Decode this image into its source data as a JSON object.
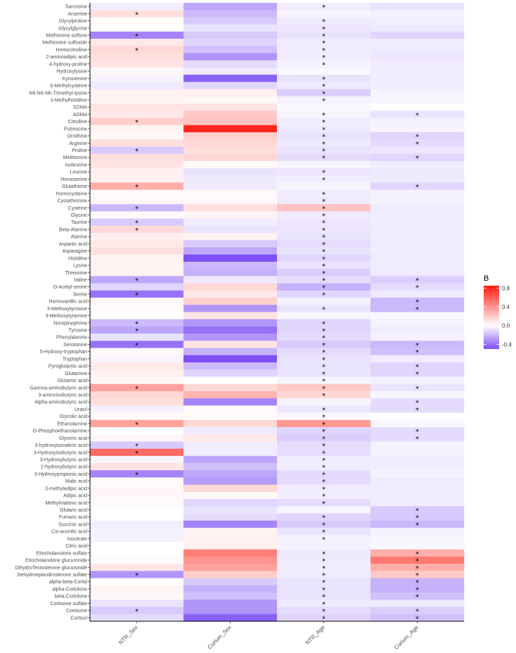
{
  "chart_data": {
    "type": "heatmap",
    "columns": [
      "NTR_Sex",
      "Curium_Sex",
      "NTR_Age",
      "Curium_Age"
    ],
    "rows": [
      "Sarcosine",
      "Anserine",
      "Glycylproline",
      "Glycylglycine",
      "Methionine sulfone",
      "Methionine sulfoxide",
      "Homocitrulline",
      "2-aminoadipic acid",
      "4-hydroxy-proline",
      "Hydroxylysine",
      "Kynurenine",
      "S-Methylcysteine",
      "N6-N6-N6-Trimethyl-lysine",
      "3-Methylhistidine",
      "SDMA",
      "ADMA",
      "Citrulline",
      "Putrescine",
      "Ornithine",
      "Arginine",
      "Proline",
      "Methionine",
      "Isoleucine",
      "Leucine",
      "Homoserine",
      "Glutathione",
      "Homocysteine",
      "Cystathionine",
      "Cysteine",
      "Glycine",
      "Taurine",
      "Beta-Alanine",
      "Alanine",
      "Aspartic acid",
      "Asparagine",
      "Histidine",
      "Lysine",
      "Threonine",
      "Valine",
      "O-Acetyl-serine",
      "Serine",
      "Homovanillic acid",
      "3-Methoxytyrosine",
      "3-Methoxytyramine",
      "Norepinephrine",
      "Tyrosine",
      "Phenylalanine",
      "Serotonine",
      "5-Hydroxy-tryptophan",
      "Tryptophan",
      "Pyroglutamic acid",
      "Glutamine",
      "Glutamic acid",
      "Gamma-aminobutyric acid",
      "3-aminoisobutyric acid",
      "Alpha-aminobutyric acid",
      "Uracil",
      "Glycolic acid",
      "Ethanolamine",
      "O-Phosphoethanolamine",
      "Glyceric acid",
      "3-hydroxyisovaleric acid",
      "3-Hydroxyisobutyric acid",
      "3-Hydroxybutyric acid",
      "2-hydroxybutyric acid",
      "3-Hydroxypropionic acid",
      "Malic acid",
      "3-methyladipic acid",
      "Adipic acid",
      "Methylmalonic acid",
      "Glutaric acid",
      "Fumaric acid",
      "Succinic acid",
      "Cis-aconitic acid",
      "Isocitrate",
      "Citric acid",
      "Etiocholanolone sulfate",
      "Etiocholanolone glucuronide",
      "DihydroTestosterone glucuronide",
      "Dehydroepiandrosterone sulfate",
      "alpha-beta-Cortol",
      "alpha-Cortolone",
      "beta-Cortolone",
      "Cortisone sulfate",
      "Cortisone",
      "Cortisol"
    ],
    "values": [
      [
        -0.05,
        -0.25,
        -0.05,
        -0.08
      ],
      [
        0.12,
        -0.2,
        -0.03,
        -0.04
      ],
      [
        0.02,
        -0.15,
        -0.06,
        -0.05
      ],
      [
        0.0,
        -0.08,
        -0.07,
        -0.06
      ],
      [
        -0.35,
        -0.15,
        -0.08,
        -0.12
      ],
      [
        0.08,
        -0.12,
        -0.06,
        -0.05
      ],
      [
        0.15,
        -0.18,
        -0.05,
        -0.06
      ],
      [
        0.12,
        -0.3,
        -0.05,
        -0.07
      ],
      [
        0.1,
        -0.1,
        -0.04,
        -0.05
      ],
      [
        0.03,
        -0.06,
        -0.02,
        -0.05
      ],
      [
        -0.03,
        -0.45,
        -0.08,
        -0.05
      ],
      [
        -0.06,
        -0.12,
        -0.06,
        -0.05
      ],
      [
        0.05,
        0.06,
        -0.14,
        -0.03
      ],
      [
        0.04,
        0.02,
        -0.04,
        -0.03
      ],
      [
        0.1,
        0.1,
        -0.02,
        0.0
      ],
      [
        0.08,
        0.2,
        -0.03,
        -0.08
      ],
      [
        0.18,
        0.22,
        -0.05,
        -0.04
      ],
      [
        0.04,
        0.8,
        -0.06,
        -0.03
      ],
      [
        0.02,
        0.18,
        -0.08,
        -0.12
      ],
      [
        0.12,
        0.15,
        -0.06,
        -0.1
      ],
      [
        -0.15,
        0.12,
        -0.08,
        -0.07
      ],
      [
        0.12,
        0.15,
        -0.1,
        -0.12
      ],
      [
        0.1,
        0.02,
        -0.03,
        -0.05
      ],
      [
        0.06,
        -0.08,
        -0.07,
        -0.06
      ],
      [
        0.05,
        -0.06,
        -0.05,
        -0.06
      ],
      [
        0.3,
        -0.06,
        -0.03,
        -0.12
      ],
      [
        0.02,
        0.02,
        -0.05,
        -0.04
      ],
      [
        0.03,
        0.03,
        -0.06,
        -0.04
      ],
      [
        -0.2,
        0.12,
        0.22,
        -0.06
      ],
      [
        0.02,
        0.04,
        -0.06,
        -0.05
      ],
      [
        -0.15,
        -0.05,
        -0.07,
        -0.05
      ],
      [
        0.14,
        -0.08,
        -0.07,
        -0.06
      ],
      [
        0.06,
        0.05,
        -0.08,
        -0.05
      ],
      [
        0.08,
        -0.15,
        -0.1,
        -0.06
      ],
      [
        0.12,
        -0.25,
        -0.08,
        -0.05
      ],
      [
        0.05,
        -0.5,
        -0.12,
        -0.06
      ],
      [
        0.04,
        -0.2,
        -0.08,
        -0.05
      ],
      [
        0.05,
        -0.22,
        -0.14,
        -0.06
      ],
      [
        -0.25,
        -0.06,
        -0.1,
        -0.14
      ],
      [
        -0.12,
        0.15,
        -0.22,
        -0.1
      ],
      [
        -0.4,
        0.08,
        -0.12,
        -0.06
      ],
      [
        0.03,
        0.18,
        -0.04,
        -0.2
      ],
      [
        0.02,
        -0.3,
        -0.08,
        -0.2
      ],
      [
        0.0,
        0.1,
        -0.03,
        -0.02
      ],
      [
        -0.2,
        -0.3,
        -0.12,
        -0.04
      ],
      [
        -0.25,
        -0.4,
        -0.12,
        -0.05
      ],
      [
        -0.08,
        -0.3,
        -0.1,
        -0.04
      ],
      [
        -0.4,
        0.1,
        -0.15,
        -0.2
      ],
      [
        0.02,
        -0.22,
        -0.1,
        -0.18
      ],
      [
        -0.03,
        -0.5,
        -0.08,
        -0.05
      ],
      [
        0.08,
        -0.2,
        -0.08,
        -0.12
      ],
      [
        0.06,
        -0.12,
        -0.08,
        -0.12
      ],
      [
        0.03,
        0.0,
        -0.03,
        -0.04
      ],
      [
        0.35,
        0.15,
        0.2,
        -0.08
      ],
      [
        0.15,
        0.28,
        0.15,
        -0.03
      ],
      [
        0.12,
        -0.35,
        -0.03,
        -0.1
      ],
      [
        -0.04,
        0.02,
        -0.07,
        -0.1
      ],
      [
        0.02,
        0.02,
        -0.02,
        0.0
      ],
      [
        0.35,
        0.15,
        0.38,
        -0.02
      ],
      [
        0.0,
        -0.06,
        -0.12,
        -0.1
      ],
      [
        0.03,
        0.08,
        -0.14,
        -0.1
      ],
      [
        -0.15,
        -0.05,
        -0.1,
        -0.04
      ],
      [
        0.55,
        -0.05,
        -0.1,
        -0.04
      ],
      [
        -0.03,
        -0.25,
        -0.05,
        -0.06
      ],
      [
        0.1,
        -0.18,
        -0.05,
        -0.05
      ],
      [
        -0.35,
        -0.25,
        -0.1,
        -0.04
      ],
      [
        0.02,
        -0.28,
        -0.1,
        -0.06
      ],
      [
        0.03,
        0.15,
        -0.06,
        -0.05
      ],
      [
        0.03,
        0.03,
        -0.05,
        -0.05
      ],
      [
        0.02,
        -0.12,
        -0.1,
        -0.05
      ],
      [
        0.0,
        -0.08,
        -0.03,
        -0.15
      ],
      [
        0.0,
        -0.1,
        -0.12,
        -0.15
      ],
      [
        -0.05,
        -0.35,
        -0.15,
        -0.2
      ],
      [
        -0.04,
        0.04,
        -0.08,
        -0.04
      ],
      [
        -0.04,
        0.05,
        -0.04,
        -0.03
      ],
      [
        0.0,
        0.06,
        -0.04,
        -0.02
      ],
      [
        0.0,
        0.48,
        -0.06,
        0.3
      ],
      [
        0.02,
        0.4,
        -0.06,
        0.5
      ],
      [
        0.1,
        0.35,
        -0.05,
        0.3
      ],
      [
        -0.3,
        0.18,
        -0.06,
        0.2
      ],
      [
        0.0,
        -0.15,
        -0.08,
        -0.22
      ],
      [
        0.04,
        -0.22,
        -0.08,
        -0.22
      ],
      [
        0.03,
        -0.18,
        -0.08,
        -0.18
      ],
      [
        -0.08,
        -0.3,
        -0.06,
        -0.06
      ],
      [
        -0.15,
        -0.3,
        -0.1,
        -0.14
      ],
      [
        -0.1,
        -0.45,
        -0.12,
        -0.18
      ]
    ],
    "significant": [
      [
        0,
        0,
        1,
        0
      ],
      [
        1,
        0,
        0,
        0
      ],
      [
        0,
        0,
        1,
        0
      ],
      [
        0,
        0,
        1,
        0
      ],
      [
        1,
        0,
        1,
        0
      ],
      [
        0,
        0,
        1,
        0
      ],
      [
        1,
        0,
        1,
        0
      ],
      [
        0,
        0,
        1,
        0
      ],
      [
        0,
        0,
        1,
        0
      ],
      [
        0,
        0,
        0,
        0
      ],
      [
        0,
        0,
        1,
        0
      ],
      [
        0,
        0,
        1,
        0
      ],
      [
        0,
        0,
        1,
        0
      ],
      [
        0,
        0,
        1,
        0
      ],
      [
        0,
        0,
        0,
        0
      ],
      [
        0,
        0,
        1,
        1
      ],
      [
        1,
        0,
        1,
        0
      ],
      [
        0,
        0,
        1,
        0
      ],
      [
        0,
        0,
        1,
        1
      ],
      [
        0,
        0,
        1,
        1
      ],
      [
        1,
        0,
        1,
        0
      ],
      [
        0,
        0,
        1,
        1
      ],
      [
        0,
        0,
        0,
        0
      ],
      [
        0,
        0,
        1,
        0
      ],
      [
        0,
        0,
        1,
        0
      ],
      [
        1,
        0,
        0,
        1
      ],
      [
        0,
        0,
        1,
        0
      ],
      [
        0,
        0,
        1,
        0
      ],
      [
        1,
        0,
        1,
        0
      ],
      [
        0,
        0,
        1,
        0
      ],
      [
        1,
        0,
        1,
        0
      ],
      [
        1,
        0,
        1,
        0
      ],
      [
        0,
        0,
        1,
        0
      ],
      [
        0,
        0,
        1,
        0
      ],
      [
        0,
        0,
        1,
        0
      ],
      [
        0,
        0,
        1,
        0
      ],
      [
        0,
        0,
        1,
        0
      ],
      [
        0,
        0,
        1,
        0
      ],
      [
        1,
        0,
        1,
        1
      ],
      [
        0,
        0,
        1,
        1
      ],
      [
        1,
        0,
        1,
        0
      ],
      [
        0,
        0,
        0,
        1
      ],
      [
        0,
        0,
        1,
        1
      ],
      [
        0,
        0,
        0,
        0
      ],
      [
        1,
        0,
        1,
        0
      ],
      [
        1,
        0,
        1,
        0
      ],
      [
        0,
        0,
        1,
        0
      ],
      [
        1,
        0,
        1,
        1
      ],
      [
        0,
        0,
        1,
        1
      ],
      [
        0,
        0,
        1,
        0
      ],
      [
        0,
        0,
        1,
        1
      ],
      [
        0,
        0,
        1,
        1
      ],
      [
        0,
        0,
        1,
        0
      ],
      [
        1,
        0,
        1,
        1
      ],
      [
        0,
        0,
        1,
        0
      ],
      [
        0,
        0,
        0,
        1
      ],
      [
        0,
        0,
        1,
        1
      ],
      [
        0,
        0,
        1,
        0
      ],
      [
        1,
        0,
        1,
        0
      ],
      [
        0,
        0,
        1,
        1
      ],
      [
        0,
        0,
        1,
        1
      ],
      [
        1,
        0,
        1,
        0
      ],
      [
        1,
        0,
        1,
        0
      ],
      [
        0,
        0,
        1,
        0
      ],
      [
        0,
        0,
        1,
        0
      ],
      [
        1,
        0,
        1,
        0
      ],
      [
        0,
        0,
        1,
        0
      ],
      [
        0,
        0,
        1,
        0
      ],
      [
        0,
        0,
        1,
        0
      ],
      [
        0,
        0,
        1,
        0
      ],
      [
        0,
        0,
        0,
        1
      ],
      [
        0,
        0,
        1,
        1
      ],
      [
        0,
        0,
        1,
        1
      ],
      [
        0,
        0,
        1,
        0
      ],
      [
        0,
        0,
        1,
        0
      ],
      [
        0,
        0,
        0,
        0
      ],
      [
        0,
        0,
        1,
        1
      ],
      [
        0,
        0,
        1,
        1
      ],
      [
        0,
        0,
        1,
        1
      ],
      [
        1,
        0,
        1,
        1
      ],
      [
        0,
        0,
        1,
        1
      ],
      [
        0,
        0,
        1,
        1
      ],
      [
        0,
        0,
        1,
        1
      ],
      [
        0,
        0,
        1,
        0
      ],
      [
        1,
        0,
        1,
        1
      ],
      [
        0,
        0,
        1,
        1
      ]
    ],
    "significance_marker": "*",
    "legend": {
      "title": "B",
      "ticks": [
        0.8,
        0.4,
        0.0,
        -0.4
      ],
      "tick_labels": [
        "0.8",
        "0.4",
        "0.0",
        "-0.4"
      ],
      "range": [
        -0.5,
        0.85
      ],
      "placement": "right"
    },
    "colors": {
      "low": "#7d4ff5",
      "mid": "#ffffff",
      "high": "#ff1a0f"
    },
    "grid": false
  }
}
